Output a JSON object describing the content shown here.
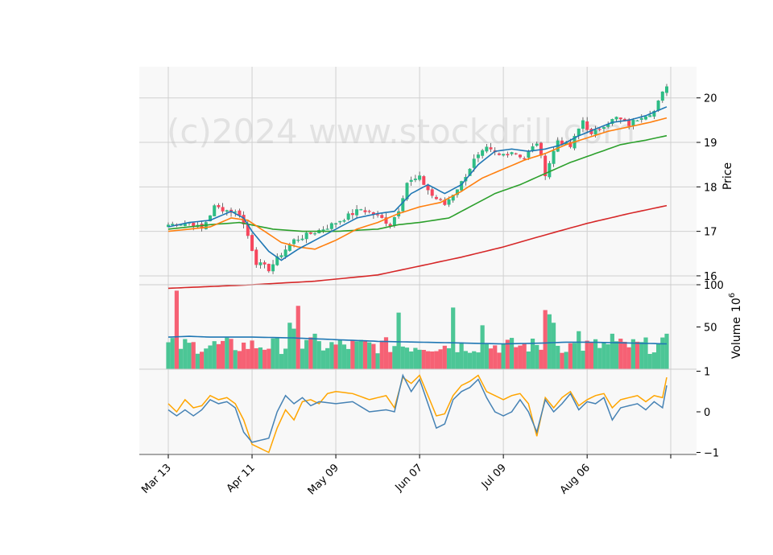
{
  "watermark": "(c)2024 www.stockdrill.com",
  "colors": {
    "up": "#2ebd85",
    "down": "#f6465d",
    "ma_fast": "#1f77b4",
    "ma_mid": "#ff7f0e",
    "ma_slow": "#2ca02c",
    "ma_long": "#d62728",
    "indicator_a": "#4682b4",
    "indicator_b": "#ffa500",
    "grid": "#d0d0d0",
    "panel_bg": "#f8f8f8"
  },
  "chart_data": {
    "type": "candlestick",
    "x_tick_labels": [
      "Mar 13",
      "Apr 11",
      "May 09",
      "Jun 07",
      "Jul 09",
      "Aug 06"
    ],
    "x_tick_indices": [
      0,
      20,
      40,
      60,
      80,
      100
    ],
    "total_bars": 120,
    "price_panel": {
      "ylabel": "Price",
      "ylim": [
        15.8,
        20.7
      ],
      "yticks": [
        "16",
        "17",
        "18",
        "19",
        "20"
      ],
      "ytick_values": [
        16,
        17,
        18,
        19,
        20
      ],
      "close_anchors": [
        [
          0,
          17.15
        ],
        [
          5,
          17.2
        ],
        [
          8,
          17.05
        ],
        [
          11,
          17.55
        ],
        [
          15,
          17.45
        ],
        [
          17,
          17.4
        ],
        [
          19,
          16.9
        ],
        [
          21,
          16.3
        ],
        [
          24,
          16.15
        ],
        [
          27,
          16.5
        ],
        [
          30,
          16.8
        ],
        [
          34,
          16.95
        ],
        [
          38,
          17.1
        ],
        [
          42,
          17.3
        ],
        [
          46,
          17.5
        ],
        [
          50,
          17.35
        ],
        [
          53,
          17.15
        ],
        [
          55,
          17.5
        ],
        [
          57,
          18.1
        ],
        [
          60,
          18.2
        ],
        [
          63,
          17.8
        ],
        [
          66,
          17.6
        ],
        [
          70,
          18.1
        ],
        [
          73,
          18.6
        ],
        [
          76,
          18.85
        ],
        [
          79,
          18.7
        ],
        [
          82,
          18.8
        ],
        [
          85,
          18.65
        ],
        [
          88,
          19.0
        ],
        [
          90,
          18.3
        ],
        [
          93,
          19.05
        ],
        [
          96,
          18.9
        ],
        [
          99,
          19.5
        ],
        [
          101,
          19.15
        ],
        [
          104,
          19.4
        ],
        [
          107,
          19.55
        ],
        [
          110,
          19.4
        ],
        [
          113,
          19.6
        ],
        [
          116,
          19.7
        ],
        [
          119,
          20.3
        ]
      ],
      "ma_anchors": {
        "fast": [
          [
            0,
            17.1
          ],
          [
            5,
            17.2
          ],
          [
            10,
            17.25
          ],
          [
            15,
            17.45
          ],
          [
            18,
            17.3
          ],
          [
            20,
            17.0
          ],
          [
            24,
            16.55
          ],
          [
            27,
            16.35
          ],
          [
            31,
            16.6
          ],
          [
            35,
            16.8
          ],
          [
            40,
            17.05
          ],
          [
            45,
            17.3
          ],
          [
            50,
            17.4
          ],
          [
            54,
            17.45
          ],
          [
            58,
            17.85
          ],
          [
            62,
            18.05
          ],
          [
            66,
            17.85
          ],
          [
            70,
            18.05
          ],
          [
            74,
            18.5
          ],
          [
            78,
            18.8
          ],
          [
            82,
            18.85
          ],
          [
            86,
            18.8
          ],
          [
            90,
            18.85
          ],
          [
            94,
            18.95
          ],
          [
            98,
            19.15
          ],
          [
            102,
            19.3
          ],
          [
            106,
            19.45
          ],
          [
            110,
            19.5
          ],
          [
            114,
            19.6
          ],
          [
            119,
            19.8
          ]
        ],
        "mid": [
          [
            0,
            17.0
          ],
          [
            5,
            17.05
          ],
          [
            10,
            17.1
          ],
          [
            15,
            17.3
          ],
          [
            19,
            17.25
          ],
          [
            23,
            17.0
          ],
          [
            27,
            16.75
          ],
          [
            31,
            16.65
          ],
          [
            35,
            16.6
          ],
          [
            40,
            16.8
          ],
          [
            45,
            17.05
          ],
          [
            50,
            17.2
          ],
          [
            55,
            17.4
          ],
          [
            60,
            17.55
          ],
          [
            65,
            17.65
          ],
          [
            70,
            17.9
          ],
          [
            75,
            18.2
          ],
          [
            80,
            18.4
          ],
          [
            85,
            18.6
          ],
          [
            90,
            18.75
          ],
          [
            95,
            18.95
          ],
          [
            100,
            19.1
          ],
          [
            105,
            19.25
          ],
          [
            110,
            19.35
          ],
          [
            115,
            19.45
          ],
          [
            119,
            19.55
          ]
        ],
        "slow": [
          [
            0,
            17.05
          ],
          [
            10,
            17.15
          ],
          [
            17,
            17.2
          ],
          [
            25,
            17.05
          ],
          [
            32,
            17.0
          ],
          [
            40,
            17.0
          ],
          [
            50,
            17.05
          ],
          [
            55,
            17.15
          ],
          [
            60,
            17.2
          ],
          [
            67,
            17.3
          ],
          [
            72,
            17.55
          ],
          [
            78,
            17.85
          ],
          [
            84,
            18.05
          ],
          [
            90,
            18.3
          ],
          [
            96,
            18.55
          ],
          [
            102,
            18.75
          ],
          [
            108,
            18.95
          ],
          [
            114,
            19.05
          ],
          [
            119,
            19.15
          ]
        ],
        "long": [
          [
            0,
            15.72
          ],
          [
            20,
            15.8
          ],
          [
            35,
            15.88
          ],
          [
            50,
            16.02
          ],
          [
            60,
            16.22
          ],
          [
            70,
            16.42
          ],
          [
            80,
            16.65
          ],
          [
            90,
            16.92
          ],
          [
            100,
            17.18
          ],
          [
            110,
            17.4
          ],
          [
            119,
            17.58
          ]
        ]
      }
    },
    "volume_panel": {
      "ylabel": "Volume",
      "ylabel_exponent": "6",
      "ylim": [
        0,
        100
      ],
      "yticks": [
        "100",
        "50"
      ],
      "ytick_values": [
        100,
        50
      ],
      "avg_line_anchors": [
        [
          0,
          38
        ],
        [
          5,
          39
        ],
        [
          10,
          38
        ],
        [
          20,
          38
        ],
        [
          30,
          37
        ],
        [
          40,
          35
        ],
        [
          50,
          33
        ],
        [
          60,
          32
        ],
        [
          70,
          31
        ],
        [
          80,
          30
        ],
        [
          90,
          31
        ],
        [
          95,
          32
        ],
        [
          100,
          32
        ],
        [
          110,
          31
        ],
        [
          119,
          30
        ]
      ]
    },
    "indicator_panel": {
      "ylim": [
        -1.05,
        1.05
      ],
      "yticks": [
        "1",
        "0",
        "−1"
      ],
      "ytick_values": [
        1,
        0,
        -1
      ],
      "line_a_anchors": [
        [
          0,
          0.05
        ],
        [
          2,
          -0.1
        ],
        [
          4,
          0.05
        ],
        [
          6,
          -0.1
        ],
        [
          8,
          0.05
        ],
        [
          10,
          0.3
        ],
        [
          12,
          0.2
        ],
        [
          14,
          0.25
        ],
        [
          16,
          0.1
        ],
        [
          18,
          -0.5
        ],
        [
          20,
          -0.75
        ],
        [
          22,
          -0.7
        ],
        [
          24,
          -0.65
        ],
        [
          26,
          0.0
        ],
        [
          28,
          0.4
        ],
        [
          30,
          0.2
        ],
        [
          32,
          0.35
        ],
        [
          34,
          0.15
        ],
        [
          36,
          0.25
        ],
        [
          40,
          0.2
        ],
        [
          44,
          0.25
        ],
        [
          48,
          0.0
        ],
        [
          52,
          0.05
        ],
        [
          54,
          0.0
        ],
        [
          56,
          0.9
        ],
        [
          58,
          0.5
        ],
        [
          60,
          0.8
        ],
        [
          62,
          0.2
        ],
        [
          64,
          -0.4
        ],
        [
          66,
          -0.3
        ],
        [
          68,
          0.3
        ],
        [
          70,
          0.5
        ],
        [
          72,
          0.6
        ],
        [
          74,
          0.8
        ],
        [
          76,
          0.35
        ],
        [
          78,
          0.0
        ],
        [
          80,
          -0.1
        ],
        [
          82,
          0.0
        ],
        [
          84,
          0.3
        ],
        [
          86,
          0.0
        ],
        [
          88,
          -0.5
        ],
        [
          90,
          0.3
        ],
        [
          92,
          0.0
        ],
        [
          94,
          0.2
        ],
        [
          96,
          0.45
        ],
        [
          98,
          0.05
        ],
        [
          100,
          0.25
        ],
        [
          102,
          0.2
        ],
        [
          104,
          0.35
        ],
        [
          106,
          -0.2
        ],
        [
          108,
          0.1
        ],
        [
          110,
          0.15
        ],
        [
          112,
          0.2
        ],
        [
          114,
          0.05
        ],
        [
          116,
          0.25
        ],
        [
          118,
          0.1
        ],
        [
          119,
          0.65
        ]
      ],
      "line_b_anchors": [
        [
          0,
          0.2
        ],
        [
          2,
          0.0
        ],
        [
          4,
          0.3
        ],
        [
          6,
          0.1
        ],
        [
          8,
          0.15
        ],
        [
          10,
          0.4
        ],
        [
          12,
          0.3
        ],
        [
          14,
          0.35
        ],
        [
          16,
          0.2
        ],
        [
          18,
          -0.2
        ],
        [
          20,
          -0.8
        ],
        [
          22,
          -0.9
        ],
        [
          24,
          -1.0
        ],
        [
          26,
          -0.4
        ],
        [
          28,
          0.05
        ],
        [
          30,
          -0.2
        ],
        [
          32,
          0.25
        ],
        [
          34,
          0.3
        ],
        [
          36,
          0.2
        ],
        [
          38,
          0.45
        ],
        [
          40,
          0.5
        ],
        [
          44,
          0.45
        ],
        [
          48,
          0.3
        ],
        [
          52,
          0.4
        ],
        [
          54,
          0.1
        ],
        [
          56,
          0.85
        ],
        [
          58,
          0.7
        ],
        [
          60,
          0.9
        ],
        [
          62,
          0.4
        ],
        [
          64,
          -0.1
        ],
        [
          66,
          -0.05
        ],
        [
          68,
          0.4
        ],
        [
          70,
          0.65
        ],
        [
          72,
          0.75
        ],
        [
          74,
          0.9
        ],
        [
          76,
          0.5
        ],
        [
          78,
          0.4
        ],
        [
          80,
          0.3
        ],
        [
          82,
          0.4
        ],
        [
          84,
          0.45
        ],
        [
          86,
          0.2
        ],
        [
          88,
          -0.6
        ],
        [
          90,
          0.35
        ],
        [
          92,
          0.1
        ],
        [
          94,
          0.35
        ],
        [
          96,
          0.5
        ],
        [
          98,
          0.15
        ],
        [
          100,
          0.3
        ],
        [
          102,
          0.4
        ],
        [
          104,
          0.45
        ],
        [
          106,
          0.1
        ],
        [
          108,
          0.3
        ],
        [
          110,
          0.35
        ],
        [
          112,
          0.4
        ],
        [
          114,
          0.25
        ],
        [
          116,
          0.4
        ],
        [
          118,
          0.35
        ],
        [
          119,
          0.85
        ]
      ]
    }
  }
}
